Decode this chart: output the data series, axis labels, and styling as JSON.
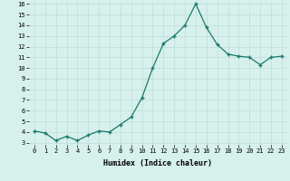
{
  "x": [
    0,
    1,
    2,
    3,
    4,
    5,
    6,
    7,
    8,
    9,
    10,
    11,
    12,
    13,
    14,
    15,
    16,
    17,
    18,
    19,
    20,
    21,
    22,
    23
  ],
  "y": [
    4.1,
    3.9,
    3.2,
    3.6,
    3.2,
    3.7,
    4.1,
    4.0,
    4.7,
    5.4,
    7.2,
    10.0,
    12.3,
    13.0,
    14.0,
    16.0,
    13.8,
    12.2,
    11.3,
    11.1,
    11.0,
    10.3,
    11.0,
    11.1
  ],
  "xlabel": "Humidex (Indice chaleur)",
  "ylim_min": 3,
  "ylim_max": 16,
  "yticks": [
    3,
    4,
    5,
    6,
    7,
    8,
    9,
    10,
    11,
    12,
    13,
    14,
    15,
    16
  ],
  "xticks": [
    0,
    1,
    2,
    3,
    4,
    5,
    6,
    7,
    8,
    9,
    10,
    11,
    12,
    13,
    14,
    15,
    16,
    17,
    18,
    19,
    20,
    21,
    22,
    23
  ],
  "line_color": "#1a7a6a",
  "marker": "+",
  "markersize": 3.5,
  "linewidth": 0.9,
  "bg_color": "#d6f0ec",
  "grid_color": "#c0ddd8",
  "xlabel_fontsize": 6.0,
  "tick_fontsize": 5.0
}
